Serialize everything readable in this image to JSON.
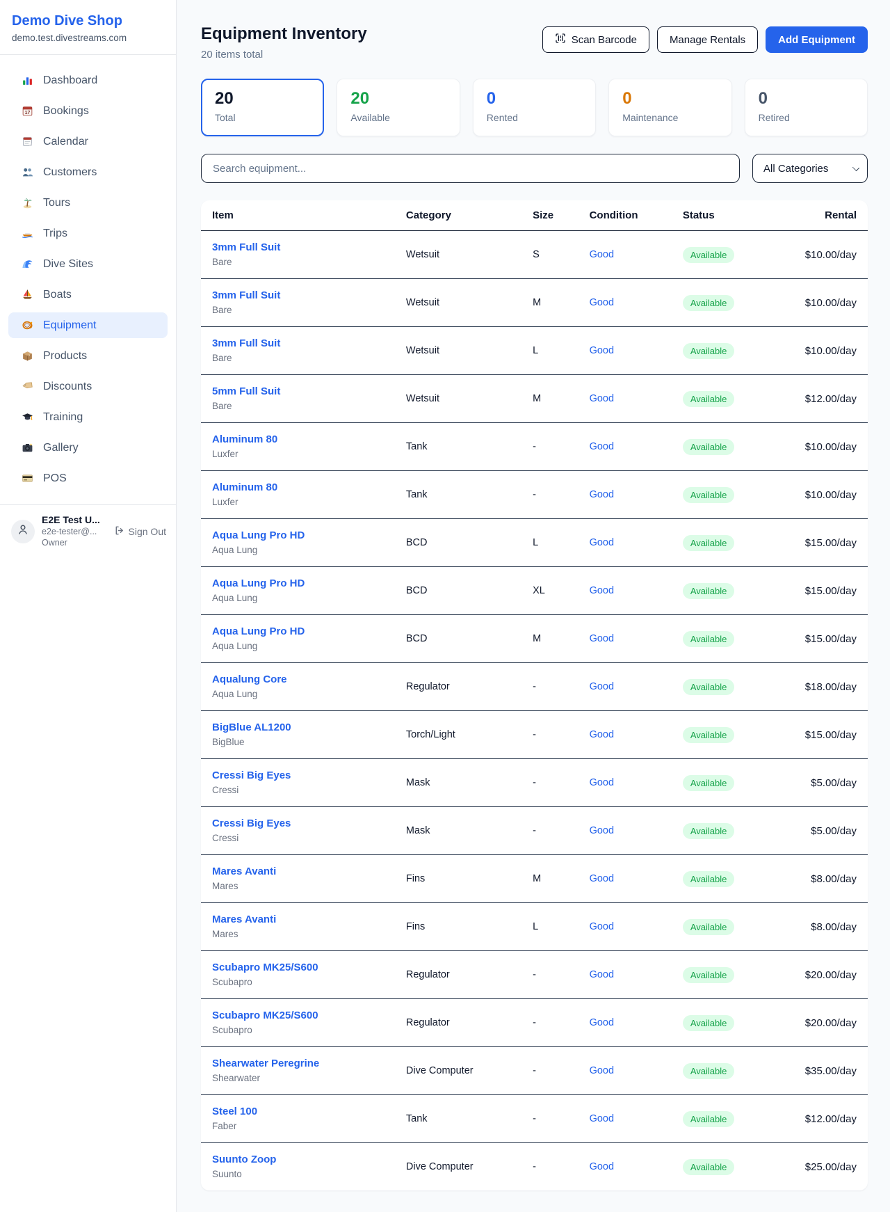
{
  "brand": {
    "name": "Demo Dive Shop",
    "domain": "demo.test.divestreams.com"
  },
  "sidebar": {
    "items": [
      {
        "id": "dashboard",
        "icon": "dashboard-chart-icon",
        "label": "Dashboard",
        "active": false
      },
      {
        "id": "bookings",
        "icon": "bookings-calendar-icon",
        "label": "Bookings",
        "active": false
      },
      {
        "id": "calendar",
        "icon": "calendar-icon",
        "label": "Calendar",
        "active": false
      },
      {
        "id": "customers",
        "icon": "customers-icon",
        "label": "Customers",
        "active": false
      },
      {
        "id": "tours",
        "icon": "tours-palm-icon",
        "label": "Tours",
        "active": false
      },
      {
        "id": "trips",
        "icon": "trips-speedboat-icon",
        "label": "Trips",
        "active": false
      },
      {
        "id": "dive-sites",
        "icon": "dive-sites-wave-icon",
        "label": "Dive Sites",
        "active": false
      },
      {
        "id": "boats",
        "icon": "boats-sailboat-icon",
        "label": "Boats",
        "active": false
      },
      {
        "id": "equipment",
        "icon": "equipment-dive-mask-icon",
        "label": "Equipment",
        "active": true
      },
      {
        "id": "products",
        "icon": "products-box-icon",
        "label": "Products",
        "active": false
      },
      {
        "id": "discounts",
        "icon": "discounts-tag-icon",
        "label": "Discounts",
        "active": false
      },
      {
        "id": "training",
        "icon": "training-grad-cap-icon",
        "label": "Training",
        "active": false
      },
      {
        "id": "gallery",
        "icon": "gallery-camera-icon",
        "label": "Gallery",
        "active": false
      },
      {
        "id": "pos",
        "icon": "pos-credit-card-icon",
        "label": "POS",
        "active": false
      }
    ],
    "user": {
      "name": "E2E Test U...",
      "email": "e2e-tester@...",
      "role": "Owner",
      "sign_out": "Sign Out"
    }
  },
  "header": {
    "title": "Equipment Inventory",
    "subtitle": "20 items total",
    "buttons": {
      "scan": "Scan Barcode",
      "manage": "Manage Rentals",
      "add": "Add Equipment"
    }
  },
  "stats": [
    {
      "value": "20",
      "label": "Total",
      "color": "#0f172a",
      "active": true
    },
    {
      "value": "20",
      "label": "Available",
      "color": "#16a34a",
      "active": false
    },
    {
      "value": "0",
      "label": "Rented",
      "color": "#2563eb",
      "active": false
    },
    {
      "value": "0",
      "label": "Maintenance",
      "color": "#d97706",
      "active": false
    },
    {
      "value": "0",
      "label": "Retired",
      "color": "#475569",
      "active": false
    }
  ],
  "search": {
    "placeholder": "Search equipment...",
    "category": "All Categories"
  },
  "table": {
    "columns": [
      "Item",
      "Category",
      "Size",
      "Condition",
      "Status",
      "Rental"
    ],
    "rows": [
      {
        "name": "3mm Full Suit",
        "brand": "Bare",
        "category": "Wetsuit",
        "size": "S",
        "condition": "Good",
        "status": "Available",
        "rental": "$10.00/day"
      },
      {
        "name": "3mm Full Suit",
        "brand": "Bare",
        "category": "Wetsuit",
        "size": "M",
        "condition": "Good",
        "status": "Available",
        "rental": "$10.00/day"
      },
      {
        "name": "3mm Full Suit",
        "brand": "Bare",
        "category": "Wetsuit",
        "size": "L",
        "condition": "Good",
        "status": "Available",
        "rental": "$10.00/day"
      },
      {
        "name": "5mm Full Suit",
        "brand": "Bare",
        "category": "Wetsuit",
        "size": "M",
        "condition": "Good",
        "status": "Available",
        "rental": "$12.00/day"
      },
      {
        "name": "Aluminum 80",
        "brand": "Luxfer",
        "category": "Tank",
        "size": "-",
        "condition": "Good",
        "status": "Available",
        "rental": "$10.00/day"
      },
      {
        "name": "Aluminum 80",
        "brand": "Luxfer",
        "category": "Tank",
        "size": "-",
        "condition": "Good",
        "status": "Available",
        "rental": "$10.00/day"
      },
      {
        "name": "Aqua Lung Pro HD",
        "brand": "Aqua Lung",
        "category": "BCD",
        "size": "L",
        "condition": "Good",
        "status": "Available",
        "rental": "$15.00/day"
      },
      {
        "name": "Aqua Lung Pro HD",
        "brand": "Aqua Lung",
        "category": "BCD",
        "size": "XL",
        "condition": "Good",
        "status": "Available",
        "rental": "$15.00/day"
      },
      {
        "name": "Aqua Lung Pro HD",
        "brand": "Aqua Lung",
        "category": "BCD",
        "size": "M",
        "condition": "Good",
        "status": "Available",
        "rental": "$15.00/day"
      },
      {
        "name": "Aqualung Core",
        "brand": "Aqua Lung",
        "category": "Regulator",
        "size": "-",
        "condition": "Good",
        "status": "Available",
        "rental": "$18.00/day"
      },
      {
        "name": "BigBlue AL1200",
        "brand": "BigBlue",
        "category": "Torch/Light",
        "size": "-",
        "condition": "Good",
        "status": "Available",
        "rental": "$15.00/day"
      },
      {
        "name": "Cressi Big Eyes",
        "brand": "Cressi",
        "category": "Mask",
        "size": "-",
        "condition": "Good",
        "status": "Available",
        "rental": "$5.00/day"
      },
      {
        "name": "Cressi Big Eyes",
        "brand": "Cressi",
        "category": "Mask",
        "size": "-",
        "condition": "Good",
        "status": "Available",
        "rental": "$5.00/day"
      },
      {
        "name": "Mares Avanti",
        "brand": "Mares",
        "category": "Fins",
        "size": "M",
        "condition": "Good",
        "status": "Available",
        "rental": "$8.00/day"
      },
      {
        "name": "Mares Avanti",
        "brand": "Mares",
        "category": "Fins",
        "size": "L",
        "condition": "Good",
        "status": "Available",
        "rental": "$8.00/day"
      },
      {
        "name": "Scubapro MK25/S600",
        "brand": "Scubapro",
        "category": "Regulator",
        "size": "-",
        "condition": "Good",
        "status": "Available",
        "rental": "$20.00/day"
      },
      {
        "name": "Scubapro MK25/S600",
        "brand": "Scubapro",
        "category": "Regulator",
        "size": "-",
        "condition": "Good",
        "status": "Available",
        "rental": "$20.00/day"
      },
      {
        "name": "Shearwater Peregrine",
        "brand": "Shearwater",
        "category": "Dive Computer",
        "size": "-",
        "condition": "Good",
        "status": "Available",
        "rental": "$35.00/day"
      },
      {
        "name": "Steel 100",
        "brand": "Faber",
        "category": "Tank",
        "size": "-",
        "condition": "Good",
        "status": "Available",
        "rental": "$12.00/day"
      },
      {
        "name": "Suunto Zoop",
        "brand": "Suunto",
        "category": "Dive Computer",
        "size": "-",
        "condition": "Good",
        "status": "Available",
        "rental": "$25.00/day"
      }
    ]
  }
}
